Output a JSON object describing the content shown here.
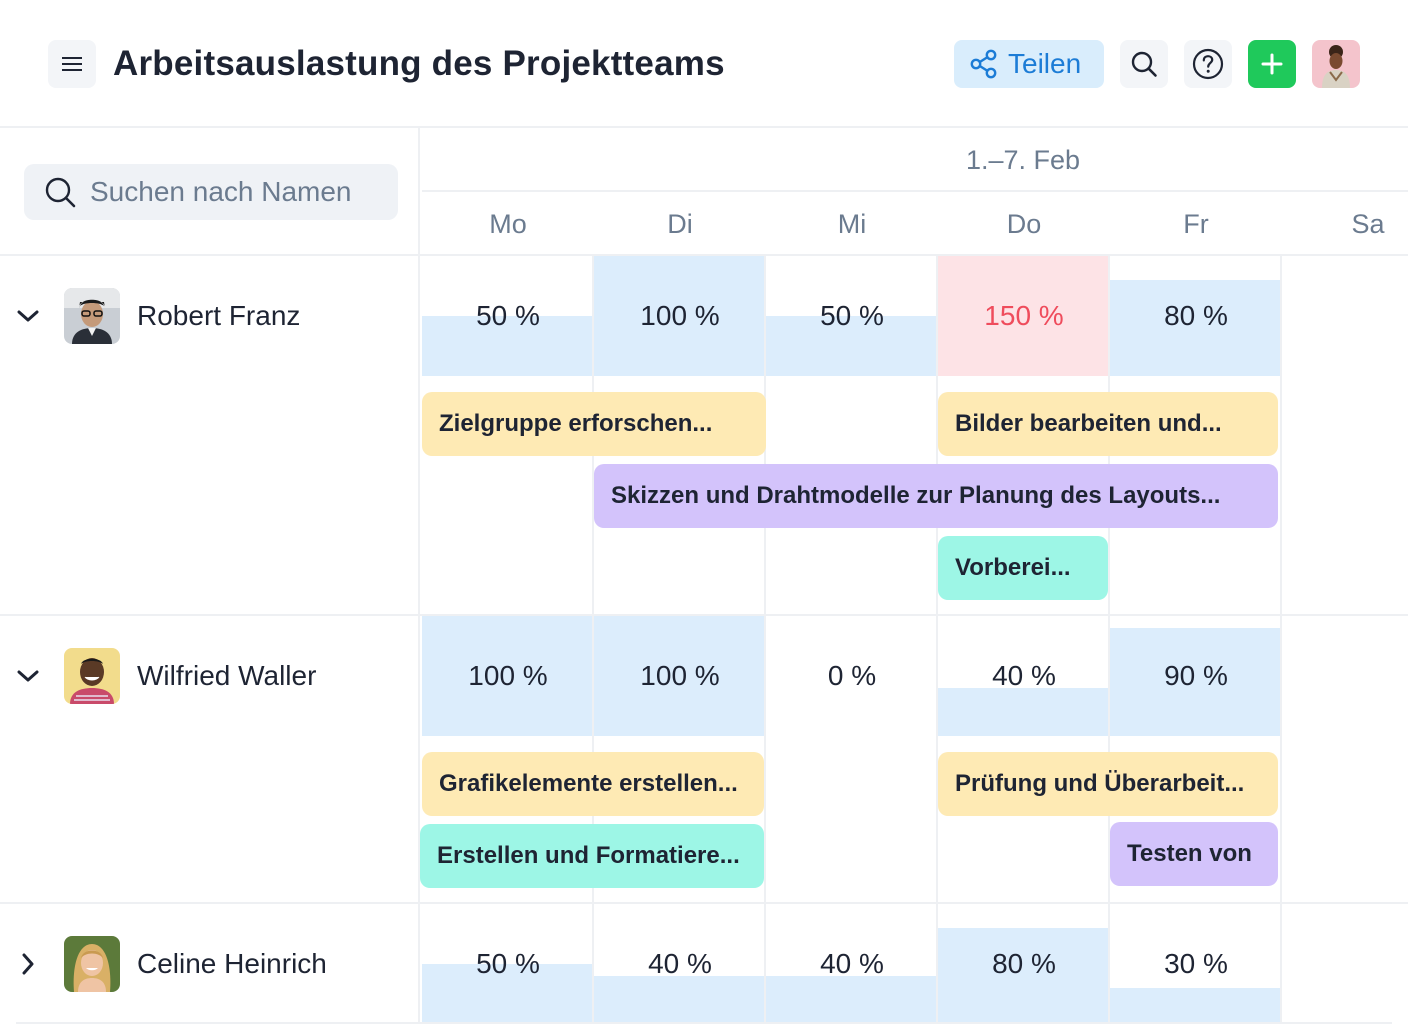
{
  "header": {
    "title": "Arbeitsauslastung des Projektteams",
    "share_label": "Teilen",
    "menu_icon": "hamburger-menu-icon",
    "share_icon": "share-icon",
    "search_icon": "search-icon",
    "help_icon": "help-icon",
    "add_icon": "plus-icon",
    "colors": {
      "share_bg": "#d9edfc",
      "share_text": "#1c7cd6",
      "add_bg": "#1fc95b"
    }
  },
  "search": {
    "placeholder": "Suchen nach Namen"
  },
  "calendar": {
    "range": "1.–7. Feb",
    "days": [
      "Mo",
      "Di",
      "Mi",
      "Do",
      "Fr",
      "Sa"
    ]
  },
  "people": [
    {
      "name": "Robert Franz",
      "expanded": true,
      "loads": [
        {
          "label": "50 %",
          "value": 50
        },
        {
          "label": "100 %",
          "value": 100
        },
        {
          "label": "50 %",
          "value": 50
        },
        {
          "label": "150 %",
          "value": 150,
          "over": true
        },
        {
          "label": "80 %",
          "value": 80
        }
      ],
      "tasks": [
        {
          "title": "Zielgruppe erforschen...",
          "color": "yellow"
        },
        {
          "title": "Bilder bearbeiten und...",
          "color": "yellow"
        },
        {
          "title": "Skizzen und Drahtmodelle zur Planung des Layouts...",
          "color": "purple"
        },
        {
          "title": "Vorberei...",
          "color": "teal"
        }
      ]
    },
    {
      "name": "Wilfried Waller",
      "expanded": true,
      "loads": [
        {
          "label": "100 %",
          "value": 100
        },
        {
          "label": "100 %",
          "value": 100
        },
        {
          "label": "0 %",
          "value": 0
        },
        {
          "label": "40 %",
          "value": 40
        },
        {
          "label": "90 %",
          "value": 90
        }
      ],
      "tasks": [
        {
          "title": "Grafikelemente erstellen...",
          "color": "yellow"
        },
        {
          "title": "Prüfung und Überarbeit...",
          "color": "yellow"
        },
        {
          "title": "Erstellen und Formatiere...",
          "color": "teal"
        },
        {
          "title": "Testen von",
          "color": "purple"
        }
      ]
    },
    {
      "name": "Celine Heinrich",
      "expanded": false,
      "loads": [
        {
          "label": "50 %",
          "value": 50
        },
        {
          "label": "40 %",
          "value": 40
        },
        {
          "label": "40 %",
          "value": 40
        },
        {
          "label": "80 %",
          "value": 80
        },
        {
          "label": "30 %",
          "value": 30
        }
      ],
      "tasks": []
    }
  ]
}
